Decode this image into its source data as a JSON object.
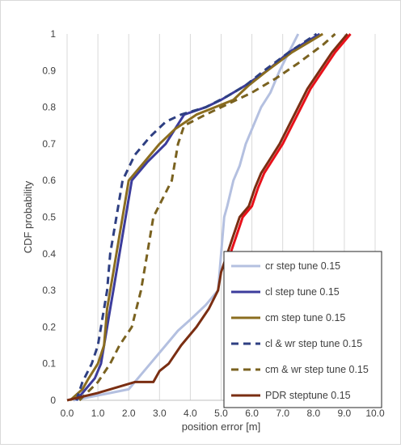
{
  "chart_data": {
    "type": "line",
    "title": "",
    "xlabel": "position error [m]",
    "ylabel": "CDF probability",
    "xlim": [
      0,
      10
    ],
    "ylim": [
      0,
      1
    ],
    "x_ticks": [
      "0.0",
      "1.0",
      "2.0",
      "3.0",
      "4.0",
      "5.0",
      "6.0",
      "7.0",
      "8.0",
      "9.0",
      "10.0"
    ],
    "y_ticks": [
      "0",
      "0.1",
      "0.2",
      "0.3",
      "0.4",
      "0.5",
      "0.6",
      "0.7",
      "0.8",
      "0.9",
      "1"
    ],
    "grid": "vertical",
    "legend_position": "bottom-right",
    "series": [
      {
        "name": "cr step tune 0.15",
        "color": "#b4c0e0",
        "dash": "solid",
        "points": [
          [
            0.2,
            0.0
          ],
          [
            2.0,
            0.03
          ],
          [
            2.4,
            0.07
          ],
          [
            2.8,
            0.11
          ],
          [
            3.2,
            0.15
          ],
          [
            3.6,
            0.19
          ],
          [
            4.0,
            0.22
          ],
          [
            4.5,
            0.26
          ],
          [
            4.9,
            0.3
          ],
          [
            5.0,
            0.4
          ],
          [
            5.1,
            0.5
          ],
          [
            5.2,
            0.53
          ],
          [
            5.4,
            0.6
          ],
          [
            5.6,
            0.64
          ],
          [
            5.8,
            0.7
          ],
          [
            6.0,
            0.74
          ],
          [
            6.3,
            0.8
          ],
          [
            6.6,
            0.84
          ],
          [
            6.9,
            0.9
          ],
          [
            7.2,
            0.95
          ],
          [
            7.5,
            1.0
          ]
        ]
      },
      {
        "name": "cl step tune 0.15",
        "color": "#3c3c9c",
        "dash": "solid",
        "points": [
          [
            0.3,
            0.0
          ],
          [
            0.6,
            0.03
          ],
          [
            0.9,
            0.06
          ],
          [
            1.1,
            0.1
          ],
          [
            1.2,
            0.15
          ],
          [
            1.4,
            0.25
          ],
          [
            1.5,
            0.3
          ],
          [
            1.7,
            0.4
          ],
          [
            1.9,
            0.5
          ],
          [
            2.1,
            0.6
          ],
          [
            2.6,
            0.65
          ],
          [
            3.2,
            0.7
          ],
          [
            3.5,
            0.74
          ],
          [
            3.8,
            0.78
          ],
          [
            4.5,
            0.8
          ],
          [
            5.0,
            0.82
          ],
          [
            5.8,
            0.86
          ],
          [
            6.5,
            0.9
          ],
          [
            7.2,
            0.95
          ],
          [
            8.2,
            1.0
          ]
        ]
      },
      {
        "name": "cm step tune 0.15",
        "color": "#8b6d1f",
        "dash": "solid",
        "points": [
          [
            0.1,
            0.0
          ],
          [
            0.5,
            0.03
          ],
          [
            0.7,
            0.06
          ],
          [
            1.0,
            0.1
          ],
          [
            1.2,
            0.15
          ],
          [
            1.3,
            0.25
          ],
          [
            1.5,
            0.35
          ],
          [
            1.6,
            0.4
          ],
          [
            1.8,
            0.5
          ],
          [
            2.0,
            0.6
          ],
          [
            2.5,
            0.65
          ],
          [
            3.0,
            0.7
          ],
          [
            3.5,
            0.74
          ],
          [
            4.2,
            0.78
          ],
          [
            4.8,
            0.8
          ],
          [
            5.4,
            0.82
          ],
          [
            5.9,
            0.86
          ],
          [
            6.5,
            0.9
          ],
          [
            7.3,
            0.95
          ],
          [
            8.3,
            1.0
          ]
        ]
      },
      {
        "name": "cl & wr step tune 0.15",
        "color": "#2e3f82",
        "dash": "dashed",
        "points": [
          [
            0.3,
            0.0
          ],
          [
            0.5,
            0.05
          ],
          [
            0.8,
            0.1
          ],
          [
            1.0,
            0.15
          ],
          [
            1.2,
            0.25
          ],
          [
            1.3,
            0.3
          ],
          [
            1.4,
            0.4
          ],
          [
            1.6,
            0.5
          ],
          [
            1.8,
            0.6
          ],
          [
            2.2,
            0.67
          ],
          [
            2.7,
            0.72
          ],
          [
            3.2,
            0.76
          ],
          [
            3.7,
            0.78
          ],
          [
            4.5,
            0.8
          ],
          [
            5.2,
            0.83
          ],
          [
            5.8,
            0.86
          ],
          [
            6.4,
            0.9
          ],
          [
            7.2,
            0.95
          ],
          [
            8.1,
            1.0
          ]
        ]
      },
      {
        "name": "cm & wr step tune 0.15",
        "color": "#7a6220",
        "dash": "dashed",
        "points": [
          [
            0.4,
            0.0
          ],
          [
            1.0,
            0.05
          ],
          [
            1.4,
            0.1
          ],
          [
            1.7,
            0.15
          ],
          [
            2.1,
            0.2
          ],
          [
            2.4,
            0.3
          ],
          [
            2.6,
            0.4
          ],
          [
            2.8,
            0.5
          ],
          [
            3.1,
            0.55
          ],
          [
            3.4,
            0.6
          ],
          [
            3.6,
            0.7
          ],
          [
            3.8,
            0.75
          ],
          [
            4.5,
            0.78
          ],
          [
            5.0,
            0.8
          ],
          [
            6.0,
            0.84
          ],
          [
            6.8,
            0.88
          ],
          [
            7.5,
            0.92
          ],
          [
            8.3,
            0.97
          ],
          [
            8.7,
            1.0
          ]
        ]
      },
      {
        "name": "PDR steptune 0.15",
        "color": "#7a2e12",
        "dash": "solid",
        "points": [
          [
            0.0,
            0.0
          ],
          [
            1.0,
            0.02
          ],
          [
            2.2,
            0.05
          ],
          [
            2.8,
            0.05
          ],
          [
            3.0,
            0.08
          ],
          [
            3.3,
            0.1
          ],
          [
            3.7,
            0.15
          ],
          [
            4.2,
            0.2
          ],
          [
            4.6,
            0.25
          ],
          [
            4.9,
            0.3
          ],
          [
            5.0,
            0.35
          ],
          [
            5.2,
            0.4
          ],
          [
            5.4,
            0.45
          ],
          [
            5.6,
            0.5
          ],
          [
            5.9,
            0.53
          ],
          [
            6.1,
            0.58
          ],
          [
            6.3,
            0.62
          ],
          [
            6.6,
            0.66
          ],
          [
            6.9,
            0.7
          ],
          [
            7.2,
            0.75
          ],
          [
            7.5,
            0.8
          ],
          [
            7.8,
            0.85
          ],
          [
            8.2,
            0.9
          ],
          [
            8.6,
            0.95
          ],
          [
            9.1,
            1.0
          ]
        ]
      },
      {
        "name": "",
        "color": "#e8111a",
        "dash": "solid",
        "points": [
          [
            5.3,
            0.4
          ],
          [
            5.5,
            0.45
          ],
          [
            5.7,
            0.5
          ],
          [
            6.0,
            0.53
          ],
          [
            6.2,
            0.58
          ],
          [
            6.4,
            0.62
          ],
          [
            6.7,
            0.66
          ],
          [
            7.0,
            0.7
          ],
          [
            7.3,
            0.75
          ],
          [
            7.6,
            0.8
          ],
          [
            7.9,
            0.85
          ],
          [
            8.3,
            0.9
          ],
          [
            8.7,
            0.95
          ],
          [
            9.2,
            1.0
          ]
        ]
      }
    ]
  }
}
